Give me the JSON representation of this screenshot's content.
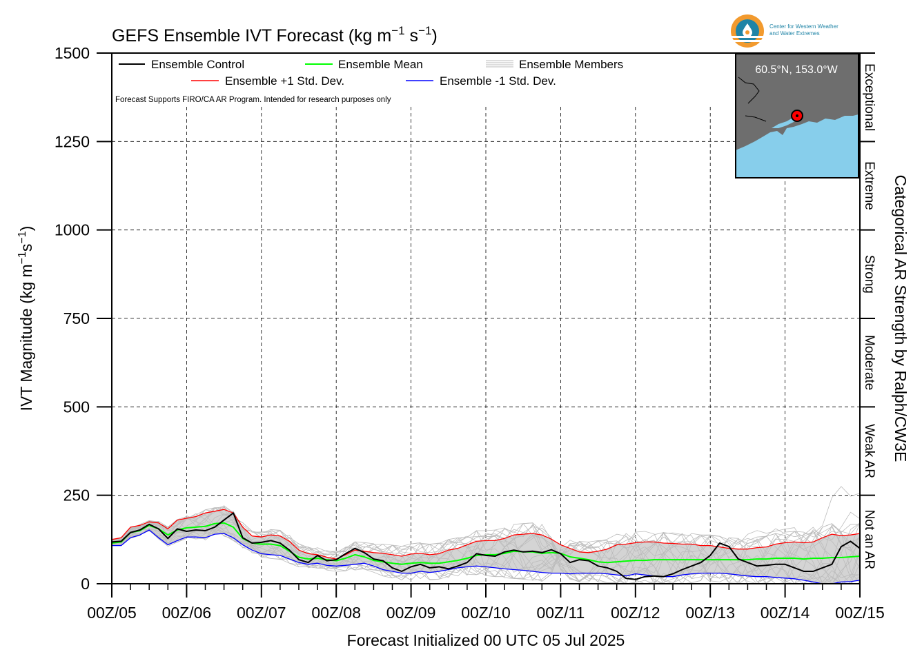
{
  "header": {
    "title": "GEFS Ensemble IVT Forecast (kg m",
    "title_sup1": "−1",
    "title_mid": " s",
    "title_sup2": "−1",
    "title_end": ")"
  },
  "logo": {
    "line1": "Center for Western Weather",
    "line2": "and Water Extremes",
    "colors": {
      "orange": "#f29a2e",
      "blue": "#1f84a6"
    }
  },
  "inset_map": {
    "location_label": "60.5°N, 153.0°W",
    "land_color": "#6e6e6e",
    "water_color": "#87ceeb",
    "marker_color": "#ff0000"
  },
  "disclaimer": "Forecast Supports FIRO/CA AR Program. Intended for research purposes only",
  "chart_data": {
    "type": "line",
    "title": "GEFS Ensemble IVT Forecast (kg m−1 s−1)",
    "xlabel": "Forecast Initialized 00 UTC 05 Jul 2025",
    "ylabel": "IVT Magnitude (kg m−1s−1)",
    "ylabel_parts": {
      "main": "IVT Magnitude (kg m",
      "sup1": "−1",
      "mid": "s",
      "sup2": "−1",
      "end": ")"
    },
    "right_label": "Categorical AR Strength by Ralph/CW3E",
    "ylim": [
      0,
      1500
    ],
    "yticks": [
      "0",
      "250",
      "500",
      "750",
      "1000",
      "1250",
      "1500"
    ],
    "xticks": [
      "00Z/05",
      "00Z/06",
      "00Z/07",
      "00Z/08",
      "00Z/09",
      "00Z/10",
      "00Z/11",
      "00Z/12",
      "00Z/13",
      "00Z/14",
      "00Z/15"
    ],
    "x_unit": "forecast hour",
    "x_range": [
      0,
      240
    ],
    "grid": true,
    "legend_placement": "top-left",
    "categories": [
      {
        "label": "Not an AR",
        "from": 0,
        "to": 250
      },
      {
        "label": "Weak AR",
        "from": 250,
        "to": 500
      },
      {
        "label": "Moderate",
        "from": 500,
        "to": 750
      },
      {
        "label": "Strong",
        "from": 750,
        "to": 1000
      },
      {
        "label": "Extreme",
        "from": 1000,
        "to": 1250
      },
      {
        "label": "Exceptional",
        "from": 1250,
        "to": 1500
      }
    ],
    "legend": [
      {
        "name": "Ensemble Control",
        "color": "#000000"
      },
      {
        "name": "Ensemble Mean",
        "color": "#00ff00"
      },
      {
        "name": "Ensemble Members",
        "color": "#bbbbbb"
      },
      {
        "name": "Ensemble +1 Std. Dev.",
        "color": "#ff0000"
      },
      {
        "name": "Ensemble -1 Std. Dev.",
        "color": "#0000ff"
      }
    ],
    "series": [
      {
        "name": "Ensemble Control",
        "color": "#000000",
        "width": 2,
        "x": [
          0,
          3,
          6,
          9,
          12,
          15,
          18,
          21,
          24,
          27,
          30,
          33,
          36,
          39,
          42,
          45,
          48,
          51,
          54,
          57,
          60,
          63,
          66,
          69,
          72,
          75,
          78,
          81,
          84,
          87,
          90,
          93,
          96,
          99,
          102,
          105,
          108,
          111,
          114,
          117,
          120,
          123,
          126,
          129,
          132,
          135,
          138,
          141,
          144,
          147,
          150,
          153,
          156,
          159,
          162,
          165,
          168,
          171,
          174,
          177,
          180,
          183,
          186,
          189,
          192,
          195,
          198,
          201,
          204,
          207,
          210,
          213,
          216,
          219,
          222,
          225,
          228,
          231,
          234,
          237,
          240
        ],
        "y": [
          118,
          120,
          145,
          152,
          168,
          155,
          128,
          155,
          148,
          152,
          150,
          160,
          180,
          200,
          130,
          115,
          117,
          122,
          115,
          95,
          68,
          60,
          80,
          65,
          68,
          85,
          100,
          88,
          70,
          65,
          45,
          35,
          48,
          55,
          45,
          48,
          42,
          50,
          60,
          85,
          80,
          78,
          90,
          95,
          90,
          92,
          88,
          96,
          85,
          60,
          68,
          65,
          50,
          45,
          35,
          15,
          12,
          20,
          22,
          20,
          28,
          40,
          50,
          60,
          80,
          115,
          105,
          70,
          60,
          50,
          52,
          55,
          55,
          45,
          35,
          35,
          45,
          55,
          105,
          120,
          100
        ]
      },
      {
        "name": "Ensemble Mean",
        "color": "#00ff00",
        "width": 2,
        "x": [
          0,
          3,
          6,
          9,
          12,
          15,
          18,
          21,
          24,
          27,
          30,
          33,
          36,
          39,
          42,
          45,
          48,
          51,
          54,
          57,
          60,
          63,
          66,
          69,
          72,
          75,
          78,
          81,
          84,
          87,
          90,
          93,
          96,
          99,
          102,
          105,
          108,
          111,
          114,
          117,
          120,
          123,
          126,
          129,
          132,
          135,
          138,
          141,
          144,
          147,
          150,
          153,
          156,
          159,
          162,
          165,
          168,
          171,
          174,
          177,
          180,
          183,
          186,
          189,
          192,
          195,
          198,
          201,
          204,
          207,
          210,
          213,
          216,
          219,
          222,
          225,
          228,
          231,
          234,
          237,
          240
        ],
        "y": [
          115,
          118,
          145,
          150,
          165,
          155,
          138,
          152,
          158,
          160,
          162,
          170,
          172,
          160,
          128,
          115,
          112,
          112,
          108,
          92,
          75,
          70,
          72,
          68,
          65,
          72,
          82,
          76,
          66,
          62,
          58,
          55,
          58,
          60,
          58,
          58,
          62,
          66,
          72,
          80,
          82,
          82,
          86,
          92,
          90,
          90,
          86,
          88,
          86,
          76,
          72,
          68,
          62,
          60,
          62,
          64,
          66,
          66,
          68,
          68,
          68,
          68,
          68,
          68,
          68,
          68,
          68,
          68,
          68,
          70,
          70,
          72,
          72,
          72,
          70,
          72,
          72,
          74,
          74,
          76,
          78
        ]
      },
      {
        "name": "Ensemble +1 Std. Dev.",
        "color": "#ff0000",
        "width": 1.3,
        "x": [
          0,
          3,
          6,
          9,
          12,
          15,
          18,
          21,
          24,
          27,
          30,
          33,
          36,
          39,
          42,
          45,
          48,
          51,
          54,
          57,
          60,
          63,
          66,
          69,
          72,
          75,
          78,
          81,
          84,
          87,
          90,
          93,
          96,
          99,
          102,
          105,
          108,
          111,
          114,
          117,
          120,
          123,
          126,
          129,
          132,
          135,
          138,
          141,
          144,
          147,
          150,
          153,
          156,
          159,
          162,
          165,
          168,
          171,
          174,
          177,
          180,
          183,
          186,
          189,
          192,
          195,
          198,
          201,
          204,
          207,
          210,
          213,
          216,
          219,
          222,
          225,
          228,
          231,
          234,
          237,
          240
        ],
        "y": [
          125,
          130,
          160,
          165,
          175,
          172,
          155,
          180,
          185,
          190,
          200,
          205,
          210,
          200,
          160,
          135,
          132,
          138,
          135,
          120,
          95,
          85,
          82,
          75,
          70,
          82,
          95,
          92,
          88,
          86,
          82,
          78,
          84,
          86,
          82,
          85,
          95,
          100,
          110,
          120,
          122,
          122,
          128,
          138,
          140,
          142,
          138,
          126,
          110,
          100,
          90,
          88,
          92,
          98,
          110,
          112,
          116,
          118,
          118,
          115,
          114,
          112,
          112,
          108,
          108,
          104,
          100,
          98,
          98,
          102,
          104,
          112,
          116,
          118,
          116,
          118,
          130,
          140,
          136,
          138,
          142
        ]
      },
      {
        "name": "Ensemble -1 Std. Dev.",
        "color": "#0000ff",
        "width": 1.3,
        "x": [
          0,
          3,
          6,
          9,
          12,
          15,
          18,
          21,
          24,
          27,
          30,
          33,
          36,
          39,
          42,
          45,
          48,
          51,
          54,
          57,
          60,
          63,
          66,
          69,
          72,
          75,
          78,
          81,
          84,
          87,
          90,
          93,
          96,
          99,
          102,
          105,
          108,
          111,
          114,
          117,
          120,
          123,
          126,
          129,
          132,
          135,
          138,
          141,
          144,
          147,
          150,
          153,
          156,
          159,
          162,
          165,
          168,
          171,
          174,
          177,
          180,
          183,
          186,
          189,
          192,
          195,
          198,
          201,
          204,
          207,
          210,
          213,
          216,
          219,
          222,
          225,
          228,
          231,
          234,
          237,
          240
        ],
        "y": [
          108,
          108,
          130,
          138,
          152,
          130,
          110,
          122,
          132,
          132,
          130,
          140,
          142,
          130,
          110,
          95,
          85,
          82,
          80,
          70,
          60,
          55,
          58,
          52,
          50,
          52,
          55,
          58,
          50,
          40,
          35,
          30,
          30,
          35,
          32,
          35,
          40,
          45,
          48,
          50,
          48,
          45,
          42,
          40,
          38,
          35,
          32,
          30,
          30,
          28,
          30,
          30,
          30,
          28,
          25,
          22,
          28,
          25,
          22,
          20,
          20,
          25,
          28,
          30,
          30,
          30,
          28,
          25,
          22,
          20,
          20,
          18,
          16,
          14,
          10,
          5,
          0,
          0,
          5,
          6,
          10
        ]
      }
    ]
  }
}
